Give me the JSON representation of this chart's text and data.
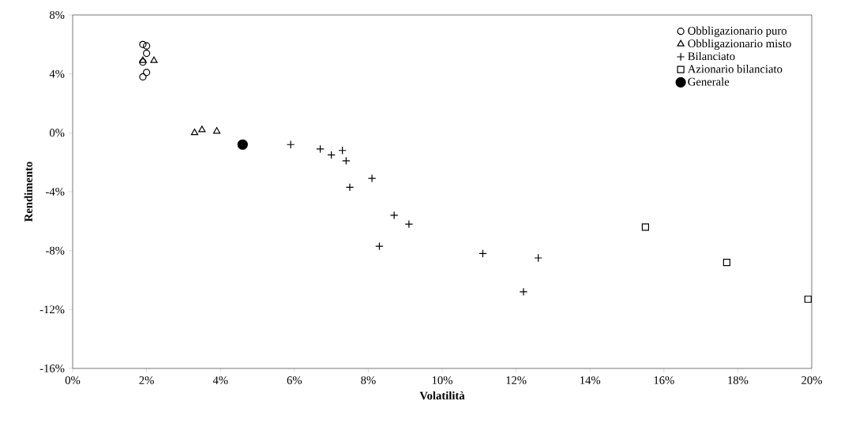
{
  "chart_data": {
    "type": "scatter",
    "xlabel": "Volatilità",
    "ylabel": "Rendimento",
    "series": [
      {
        "name": "Obbligazionario puro",
        "color": "#000000",
        "marker": "circle",
        "x": [
          1.9,
          2.0,
          2.0,
          1.9,
          2.0,
          1.9
        ],
        "values": [
          6.0,
          5.9,
          5.4,
          4.8,
          4.1,
          3.8
        ]
      },
      {
        "name": "Obbligazionario misto",
        "color": "#000000",
        "marker": "triangle",
        "x": [
          1.9,
          2.2,
          3.3,
          3.5,
          3.9
        ],
        "values": [
          4.9,
          4.9,
          0.0,
          0.2,
          0.1
        ]
      },
      {
        "name": "Bilanciato",
        "color": "#000000",
        "marker": "cross",
        "x": [
          5.9,
          6.7,
          7.0,
          7.3,
          7.4,
          8.1,
          7.5,
          8.7,
          9.1,
          8.3,
          11.1,
          12.6,
          12.2
        ],
        "values": [
          -0.8,
          -1.1,
          -1.5,
          -1.2,
          -1.9,
          -3.1,
          -3.7,
          -5.6,
          -6.2,
          -7.7,
          -8.2,
          -8.5,
          -10.8
        ]
      },
      {
        "name": "Azionario bilanciato",
        "color": "#000000",
        "marker": "square",
        "x": [
          15.5,
          17.7,
          19.9
        ],
        "values": [
          -6.4,
          -8.8,
          -11.3
        ]
      },
      {
        "name": "Generale",
        "color": "#000000",
        "marker": "filled circle",
        "x": [
          4.6
        ],
        "values": [
          -0.8
        ]
      }
    ],
    "xlim": [
      0,
      20
    ],
    "ylim": [
      -16,
      8
    ],
    "xticks": [
      {
        "value": 0,
        "label": "0%"
      },
      {
        "value": 2,
        "label": "2%"
      },
      {
        "value": 4,
        "label": "4%"
      },
      {
        "value": 6,
        "label": "6%"
      },
      {
        "value": 8,
        "label": "8%"
      },
      {
        "value": 10,
        "label": "10%"
      },
      {
        "value": 12,
        "label": "12%"
      },
      {
        "value": 14,
        "label": "14%"
      },
      {
        "value": 16,
        "label": "16%"
      },
      {
        "value": 18,
        "label": "18%"
      },
      {
        "value": 20,
        "label": "20%"
      }
    ],
    "yticks": [
      {
        "value": -16,
        "label": "-16%"
      },
      {
        "value": -12,
        "label": "-12%"
      },
      {
        "value": -8,
        "label": "-8%"
      },
      {
        "value": -4,
        "label": "-4%"
      },
      {
        "value": 0,
        "label": "0%"
      },
      {
        "value": 4,
        "label": "4%"
      },
      {
        "value": 8,
        "label": "8%"
      }
    ],
    "grid": false,
    "legend": "top right"
  }
}
